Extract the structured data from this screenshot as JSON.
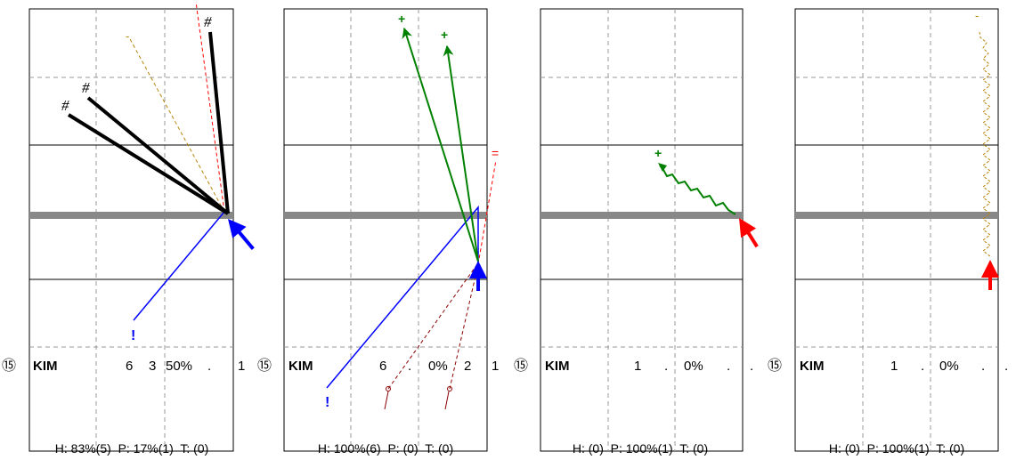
{
  "panels": [
    {
      "player_number": "⑮",
      "player_name": "KIM",
      "stats": [
        "6",
        "3",
        "50%",
        ".",
        "1"
      ],
      "footer": "H: 83%(5)  P: 17%(1)  T: (0)",
      "markers": [
        "#",
        "#",
        "#",
        "-",
        "!"
      ]
    },
    {
      "player_number": "⑮",
      "player_name": "KIM",
      "stats": [
        "6",
        ".",
        "0%",
        "2",
        "1"
      ],
      "footer": "H: 100%(6)  P: (0)  T: (0)",
      "markers": [
        "+",
        "+",
        "=",
        "!",
        "o",
        "o"
      ]
    },
    {
      "player_number": "⑮",
      "player_name": "KIM",
      "stats": [
        "1",
        ".",
        "0%",
        ".",
        "."
      ],
      "footer": "H: (0)  P: 100%(1)  T: (0)",
      "markers": [
        "+"
      ]
    },
    {
      "player_number": "⑮",
      "player_name": "KIM",
      "stats": [
        "1",
        ".",
        "0%",
        ".",
        "."
      ],
      "footer": "H: (0)  P: 100%(1)  T: (0)",
      "markers": [
        "-"
      ]
    }
  ],
  "colors": {
    "hit": "#000000",
    "set": "#0000ff",
    "pass": "#008000",
    "error": "#ff0000",
    "dig": "#b8860b",
    "block": "#8b0000",
    "net": "#888888",
    "grid": "#999999",
    "frame": "#000000"
  }
}
